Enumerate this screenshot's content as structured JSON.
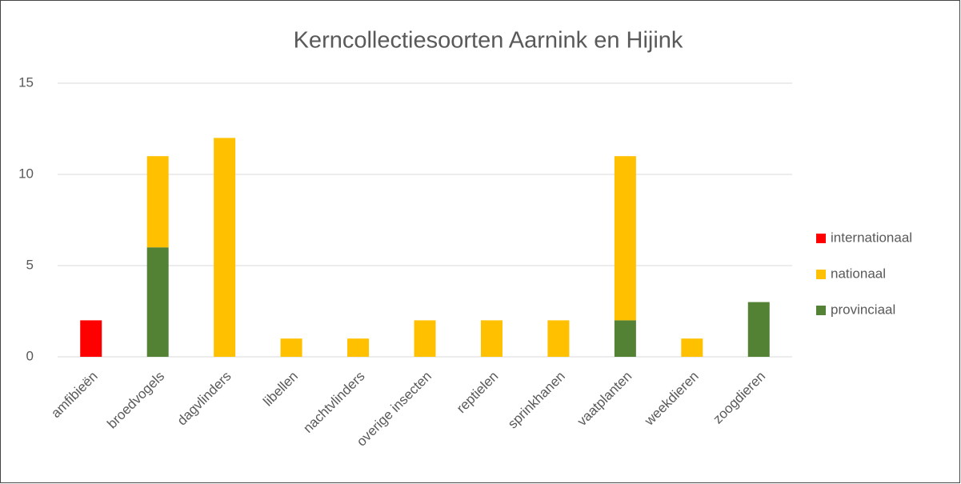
{
  "chart_data": {
    "type": "stacked_bar",
    "title": "Kerncollectiesoorten Aarnink en Hijink",
    "categories": [
      "amfibieën",
      "broedvogels",
      "dagvlinders",
      "libellen",
      "nachtvlinders",
      "overige insecten",
      "reptielen",
      "sprinkhanen",
      "vaatplanten",
      "weekdieren",
      "zoogdieren"
    ],
    "series": [
      {
        "name": "internationaal",
        "color": "#ff0000",
        "values": [
          2,
          0,
          0,
          0,
          0,
          0,
          0,
          0,
          0,
          0,
          0
        ]
      },
      {
        "name": "nationaal",
        "color": "#ffc000",
        "values": [
          0,
          5,
          12,
          1,
          1,
          2,
          2,
          2,
          9,
          1,
          0
        ]
      },
      {
        "name": "provinciaal",
        "color": "#548235",
        "values": [
          0,
          6,
          0,
          0,
          0,
          0,
          0,
          0,
          2,
          0,
          3
        ]
      }
    ],
    "ylim": [
      0,
      15
    ],
    "yticks": [
      0,
      5,
      10,
      15
    ],
    "grid": true,
    "legend": "right"
  }
}
